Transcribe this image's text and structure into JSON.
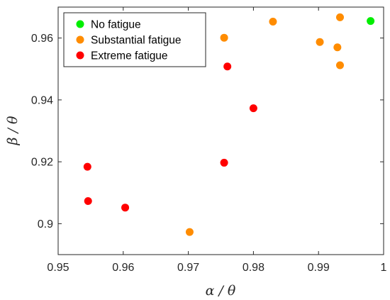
{
  "chart_data": {
    "type": "scatter",
    "xlabel": "α / θ",
    "ylabel": "β / θ",
    "xlim": [
      0.95,
      1.0
    ],
    "ylim": [
      0.89,
      0.97
    ],
    "xticks": [
      0.95,
      0.96,
      0.97,
      0.98,
      0.99,
      1.0
    ],
    "xtick_labels": [
      "0.95",
      "0.96",
      "0.97",
      "0.98",
      "0.99",
      "1"
    ],
    "yticks": [
      0.9,
      0.92,
      0.94,
      0.96
    ],
    "ytick_labels": [
      "0.9",
      "0.92",
      "0.94",
      "0.96"
    ],
    "grid": false,
    "legend_position": "top-left",
    "series": [
      {
        "name": "No fatigue",
        "color": "#00ee00",
        "points": [
          [
            0.998,
            0.9655
          ]
        ]
      },
      {
        "name": "Substantial fatigue",
        "color": "#ff8c00",
        "points": [
          [
            0.9755,
            0.9601
          ],
          [
            0.983,
            0.9653
          ],
          [
            0.9902,
            0.9587
          ],
          [
            0.9929,
            0.957
          ],
          [
            0.9933,
            0.9667
          ],
          [
            0.9933,
            0.9512
          ],
          [
            0.9702,
            0.8973
          ]
        ]
      },
      {
        "name": "Extreme fatigue",
        "color": "#ff0000",
        "points": [
          [
            0.976,
            0.9508
          ],
          [
            0.98,
            0.9373
          ],
          [
            0.9755,
            0.9197
          ],
          [
            0.9545,
            0.9184
          ],
          [
            0.9546,
            0.9073
          ],
          [
            0.9603,
            0.9052
          ]
        ]
      }
    ]
  }
}
